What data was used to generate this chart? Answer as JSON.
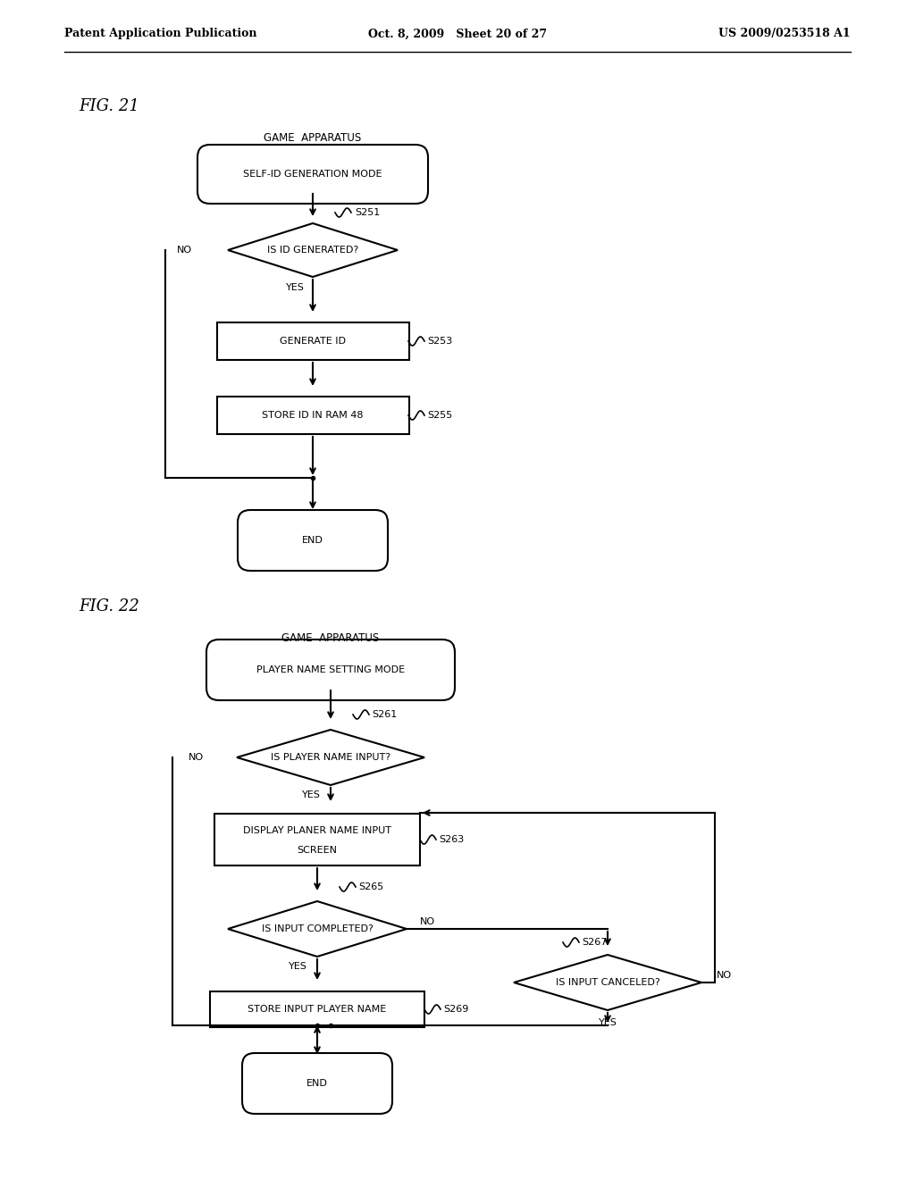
{
  "bg_color": "#ffffff",
  "header_left": "Patent Application Publication",
  "header_center": "Oct. 8, 2009   Sheet 20 of 27",
  "header_right": "US 2009/0253518 A1",
  "fig21_label": "FIG. 21",
  "fig22_label": "FIG. 22",
  "fig21_title": "GAME  APPARATUS",
  "fig22_title": "GAME  APPARATUS",
  "line_color": "#000000",
  "text_color": "#000000"
}
